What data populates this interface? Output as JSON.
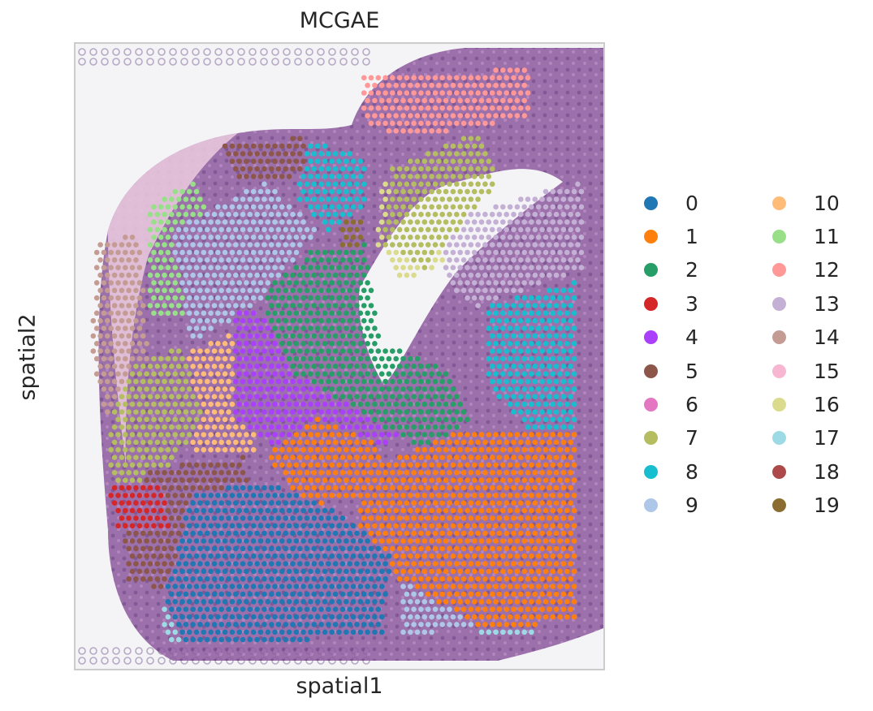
{
  "chart_data": {
    "type": "scatter",
    "title": "MCGAE",
    "xlabel": "spatial1",
    "ylabel": "spatial2",
    "grid": false,
    "legend": {
      "placement": "right",
      "columns": 2,
      "entries": [
        {
          "label": "0",
          "color": "#1f77b4"
        },
        {
          "label": "1",
          "color": "#ff7f0e"
        },
        {
          "label": "2",
          "color": "#279e68"
        },
        {
          "label": "3",
          "color": "#d62728"
        },
        {
          "label": "4",
          "color": "#aa40fc"
        },
        {
          "label": "5",
          "color": "#8c564b"
        },
        {
          "label": "6",
          "color": "#e377c2"
        },
        {
          "label": "7",
          "color": "#b5bd61"
        },
        {
          "label": "8",
          "color": "#17becf"
        },
        {
          "label": "9",
          "color": "#aec7e8"
        },
        {
          "label": "10",
          "color": "#ffbb78"
        },
        {
          "label": "11",
          "color": "#98df8a"
        },
        {
          "label": "12",
          "color": "#ff9896"
        },
        {
          "label": "13",
          "color": "#c5b0d5"
        },
        {
          "label": "14",
          "color": "#c49c94"
        },
        {
          "label": "15",
          "color": "#f7b6d2"
        },
        {
          "label": "16",
          "color": "#dbdb8d"
        },
        {
          "label": "17",
          "color": "#9edae5"
        },
        {
          "label": "18",
          "color": "#ad494a"
        },
        {
          "label": "19",
          "color": "#8c6d31"
        }
      ]
    },
    "background": "H&E tissue image (purple/pink stained)",
    "regions": [
      {
        "cluster": "0",
        "polygon": [
          [
            0.17,
            0.88
          ],
          [
            0.22,
            0.72
          ],
          [
            0.36,
            0.7
          ],
          [
            0.5,
            0.75
          ],
          [
            0.6,
            0.82
          ],
          [
            0.58,
            0.95
          ],
          [
            0.2,
            0.96
          ]
        ]
      },
      {
        "cluster": "1",
        "polygon": [
          [
            0.55,
            0.68
          ],
          [
            0.72,
            0.62
          ],
          [
            0.95,
            0.62
          ],
          [
            0.95,
            0.92
          ],
          [
            0.78,
            0.94
          ],
          [
            0.62,
            0.86
          ],
          [
            0.52,
            0.82
          ]
        ]
      },
      {
        "cluster": "1",
        "polygon": [
          [
            0.36,
            0.66
          ],
          [
            0.46,
            0.6
          ],
          [
            0.58,
            0.64
          ],
          [
            0.56,
            0.72
          ],
          [
            0.44,
            0.74
          ]
        ]
      },
      {
        "cluster": "2",
        "polygon": [
          [
            0.35,
            0.4
          ],
          [
            0.45,
            0.33
          ],
          [
            0.55,
            0.32
          ],
          [
            0.58,
            0.48
          ],
          [
            0.7,
            0.52
          ],
          [
            0.75,
            0.6
          ],
          [
            0.68,
            0.66
          ],
          [
            0.52,
            0.58
          ],
          [
            0.4,
            0.52
          ]
        ]
      },
      {
        "cluster": "3",
        "polygon": [
          [
            0.06,
            0.7
          ],
          [
            0.16,
            0.7
          ],
          [
            0.18,
            0.78
          ],
          [
            0.08,
            0.78
          ]
        ]
      },
      {
        "cluster": "3",
        "polygon": [
          [
            0.68,
            0.62
          ],
          [
            0.95,
            0.62
          ],
          [
            0.95,
            0.68
          ],
          [
            0.7,
            0.68
          ]
        ]
      },
      {
        "cluster": "4",
        "polygon": [
          [
            0.3,
            0.42
          ],
          [
            0.44,
            0.46
          ],
          [
            0.56,
            0.56
          ],
          [
            0.62,
            0.62
          ],
          [
            0.52,
            0.68
          ],
          [
            0.4,
            0.66
          ],
          [
            0.3,
            0.6
          ]
        ]
      },
      {
        "cluster": "5",
        "polygon": [
          [
            0.09,
            0.76
          ],
          [
            0.14,
            0.68
          ],
          [
            0.32,
            0.66
          ],
          [
            0.34,
            0.82
          ],
          [
            0.2,
            0.88
          ],
          [
            0.1,
            0.86
          ]
        ]
      },
      {
        "cluster": "5",
        "polygon": [
          [
            0.28,
            0.16
          ],
          [
            0.43,
            0.15
          ],
          [
            0.44,
            0.21
          ],
          [
            0.3,
            0.22
          ]
        ]
      },
      {
        "cluster": "6",
        "polygon": [
          [
            0.18,
            0.88
          ],
          [
            0.31,
            0.86
          ],
          [
            0.34,
            0.92
          ],
          [
            0.2,
            0.93
          ]
        ]
      },
      {
        "cluster": "7",
        "polygon": [
          [
            0.06,
            0.62
          ],
          [
            0.1,
            0.52
          ],
          [
            0.2,
            0.48
          ],
          [
            0.24,
            0.6
          ],
          [
            0.16,
            0.7
          ],
          [
            0.07,
            0.7
          ]
        ]
      },
      {
        "cluster": "7",
        "polygon": [
          [
            0.6,
            0.2
          ],
          [
            0.76,
            0.14
          ],
          [
            0.8,
            0.22
          ],
          [
            0.66,
            0.36
          ],
          [
            0.58,
            0.32
          ]
        ]
      },
      {
        "cluster": "8",
        "polygon": [
          [
            0.42,
            0.15
          ],
          [
            0.55,
            0.18
          ],
          [
            0.55,
            0.26
          ],
          [
            0.48,
            0.3
          ],
          [
            0.42,
            0.25
          ]
        ]
      },
      {
        "cluster": "8",
        "polygon": [
          [
            0.78,
            0.42
          ],
          [
            0.95,
            0.38
          ],
          [
            0.95,
            0.62
          ],
          [
            0.86,
            0.62
          ],
          [
            0.78,
            0.55
          ]
        ]
      },
      {
        "cluster": "9",
        "polygon": [
          [
            0.18,
            0.3
          ],
          [
            0.36,
            0.22
          ],
          [
            0.46,
            0.3
          ],
          [
            0.34,
            0.42
          ],
          [
            0.22,
            0.48
          ]
        ]
      },
      {
        "cluster": "9",
        "polygon": [
          [
            0.62,
            0.86
          ],
          [
            0.75,
            0.82
          ],
          [
            0.77,
            0.93
          ],
          [
            0.62,
            0.95
          ]
        ]
      },
      {
        "cluster": "10",
        "polygon": [
          [
            0.2,
            0.5
          ],
          [
            0.3,
            0.46
          ],
          [
            0.36,
            0.52
          ],
          [
            0.34,
            0.66
          ],
          [
            0.22,
            0.66
          ]
        ]
      },
      {
        "cluster": "11",
        "polygon": [
          [
            0.14,
            0.26
          ],
          [
            0.22,
            0.22
          ],
          [
            0.28,
            0.3
          ],
          [
            0.22,
            0.44
          ],
          [
            0.14,
            0.44
          ]
        ]
      },
      {
        "cluster": "12",
        "polygon": [
          [
            0.54,
            0.05
          ],
          [
            0.86,
            0.04
          ],
          [
            0.86,
            0.12
          ],
          [
            0.62,
            0.15
          ],
          [
            0.54,
            0.12
          ]
        ]
      },
      {
        "cluster": "13",
        "polygon": [
          [
            0.7,
            0.28
          ],
          [
            0.96,
            0.22
          ],
          [
            0.96,
            0.36
          ],
          [
            0.76,
            0.42
          ],
          [
            0.7,
            0.38
          ]
        ]
      },
      {
        "cluster": "14",
        "polygon": [
          [
            0.04,
            0.32
          ],
          [
            0.12,
            0.3
          ],
          [
            0.14,
            0.52
          ],
          [
            0.06,
            0.6
          ],
          [
            0.03,
            0.5
          ]
        ]
      },
      {
        "cluster": "16",
        "polygon": [
          [
            0.58,
            0.22
          ],
          [
            0.72,
            0.16
          ],
          [
            0.72,
            0.34
          ],
          [
            0.62,
            0.38
          ],
          [
            0.57,
            0.32
          ]
        ]
      },
      {
        "cluster": "17",
        "polygon": [
          [
            0.76,
            0.86
          ],
          [
            0.86,
            0.82
          ],
          [
            0.88,
            0.94
          ],
          [
            0.76,
            0.95
          ]
        ]
      },
      {
        "cluster": "17",
        "polygon": [
          [
            0.16,
            0.9
          ],
          [
            0.24,
            0.88
          ],
          [
            0.26,
            0.95
          ],
          [
            0.17,
            0.96
          ]
        ]
      },
      {
        "cluster": "18",
        "polygon": [
          [
            0.88,
            0.78
          ],
          [
            0.95,
            0.76
          ],
          [
            0.95,
            0.9
          ],
          [
            0.88,
            0.88
          ]
        ]
      },
      {
        "cluster": "19",
        "polygon": [
          [
            0.5,
            0.28
          ],
          [
            0.54,
            0.28
          ],
          [
            0.54,
            0.38
          ],
          [
            0.5,
            0.38
          ]
        ]
      }
    ]
  }
}
